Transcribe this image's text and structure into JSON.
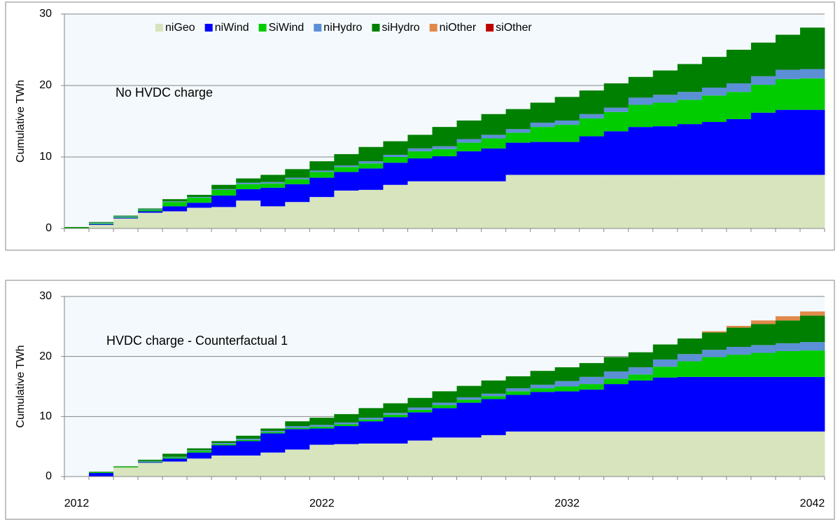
{
  "chart_data": [
    {
      "type": "step-area",
      "annotation": "No HVDC charge",
      "y_label": "Cumulative TWh",
      "categories": [
        null,
        null,
        null,
        null,
        null,
        null,
        null,
        null,
        null,
        null,
        null,
        null,
        null,
        null,
        null,
        null,
        null,
        null,
        null,
        null,
        null,
        null,
        null,
        null,
        null,
        null,
        null,
        null,
        null,
        null,
        null
      ],
      "ylim": [
        0,
        30
      ],
      "yticks": [
        0,
        10,
        20,
        30
      ],
      "grid": true,
      "legend": "top",
      "series": [
        {
          "name": "niGeo",
          "color": "#d7e4bd",
          "values": [
            0,
            0.5,
            1.4,
            2.2,
            2.4,
            2.9,
            3.0,
            3.9,
            3.1,
            3.7,
            4.4,
            5.3,
            5.4,
            6.1,
            6.6,
            6.6,
            6.6,
            6.6,
            7.5,
            7.5,
            7.5,
            7.5,
            7.5,
            7.5,
            7.5,
            7.5,
            7.5,
            7.5,
            7.5,
            7.5,
            7.5
          ]
        },
        {
          "name": "niWind",
          "color": "#0000ff",
          "values": [
            0,
            0.1,
            0.1,
            0.2,
            0.7,
            0.7,
            1.6,
            1.6,
            2.6,
            2.5,
            2.7,
            2.6,
            3.0,
            3.1,
            3.2,
            3.5,
            4.2,
            4.6,
            4.5,
            4.6,
            4.6,
            5.4,
            6.1,
            6.7,
            6.8,
            7.1,
            7.4,
            7.8,
            8.7,
            9.1,
            9.1
          ]
        },
        {
          "name": "SiWind",
          "color": "#00cc00",
          "values": [
            0.1,
            0.1,
            0.1,
            0.2,
            0.6,
            0.7,
            0.8,
            0.7,
            0.6,
            0.7,
            0.8,
            0.7,
            0.7,
            0.8,
            1.0,
            1.0,
            1.2,
            1.4,
            1.4,
            2.1,
            2.4,
            2.5,
            2.7,
            3.1,
            3.3,
            3.4,
            3.7,
            3.8,
            3.9,
            4.3,
            4.4
          ]
        },
        {
          "name": "niHydro",
          "color": "#5b8fd6",
          "values": [
            0,
            0.1,
            0.1,
            0.1,
            0.1,
            0.1,
            0.1,
            0.2,
            0.2,
            0.2,
            0.2,
            0.2,
            0.3,
            0.3,
            0.4,
            0.4,
            0.5,
            0.5,
            0.5,
            0.6,
            0.6,
            0.6,
            0.6,
            1.0,
            1.1,
            1.1,
            1.1,
            1.2,
            1.2,
            1.3,
            1.3
          ]
        },
        {
          "name": "siHydro",
          "color": "#008000",
          "values": [
            0.1,
            0.1,
            0.1,
            0.1,
            0.3,
            0.3,
            0.6,
            0.6,
            1.0,
            1.2,
            1.3,
            1.6,
            2.0,
            1.9,
            1.9,
            2.7,
            2.6,
            2.9,
            2.8,
            2.8,
            3.3,
            3.3,
            3.4,
            2.9,
            3.4,
            3.9,
            4.3,
            4.7,
            4.7,
            4.9,
            5.8
          ]
        },
        {
          "name": "niOther",
          "color": "#e0894a",
          "values": [
            0,
            0,
            0,
            0,
            0,
            0,
            0,
            0,
            0,
            0,
            0,
            0,
            0,
            0,
            0,
            0,
            0,
            0,
            0,
            0,
            0,
            0,
            0,
            0,
            0,
            0,
            0,
            0,
            0,
            0,
            0
          ]
        },
        {
          "name": "siOther",
          "color": "#c00000",
          "values": [
            0,
            0,
            0,
            0,
            0,
            0,
            0,
            0,
            0,
            0,
            0,
            0,
            0,
            0,
            0,
            0,
            0,
            0,
            0,
            0,
            0,
            0,
            0,
            0,
            0,
            0,
            0,
            0,
            0,
            0,
            0
          ]
        }
      ]
    },
    {
      "type": "step-area",
      "annotation": "HVDC charge - Counterfactual 1",
      "y_label": "Cumulative TWh",
      "categories": [
        "2012",
        null,
        null,
        null,
        null,
        null,
        null,
        null,
        null,
        null,
        "2022",
        null,
        null,
        null,
        null,
        null,
        null,
        null,
        null,
        null,
        "2032",
        null,
        null,
        null,
        null,
        null,
        null,
        null,
        null,
        null,
        "2042"
      ],
      "ylim": [
        0,
        30
      ],
      "yticks": [
        0,
        10,
        20,
        30
      ],
      "grid": true,
      "legend": false,
      "series": [
        {
          "name": "niGeo",
          "color": "#d7e4bd",
          "values": [
            0,
            0,
            1.5,
            2.3,
            2.5,
            3.0,
            3.5,
            3.5,
            4.0,
            4.5,
            5.3,
            5.4,
            5.5,
            5.5,
            6.0,
            6.5,
            6.5,
            6.9,
            7.5,
            7.5,
            7.5,
            7.5,
            7.5,
            7.5,
            7.5,
            7.5,
            7.5,
            7.5,
            7.5,
            7.5,
            7.5
          ]
        },
        {
          "name": "niWind",
          "color": "#0000ff",
          "values": [
            0,
            0.6,
            0,
            0.1,
            0.5,
            1.0,
            1.7,
            2.4,
            3.2,
            3.4,
            2.7,
            3.0,
            3.7,
            4.4,
            4.7,
            4.9,
            5.8,
            6.0,
            6.1,
            6.6,
            6.7,
            7.0,
            7.9,
            8.5,
            9.0,
            9.1,
            9.1,
            9.1,
            9.1,
            9.1,
            9.1
          ]
        },
        {
          "name": "SiWind",
          "color": "#00cc00",
          "values": [
            0,
            0.1,
            0.1,
            0.1,
            0.2,
            0.3,
            0.2,
            0.2,
            0.2,
            0.2,
            0.3,
            0.3,
            0.3,
            0.4,
            0.4,
            0.5,
            0.5,
            0.5,
            0.6,
            0.6,
            0.8,
            0.9,
            0.9,
            1.0,
            1.8,
            2.6,
            3.3,
            3.7,
            4.0,
            4.3,
            4.4
          ]
        },
        {
          "name": "niHydro",
          "color": "#5b8fd6",
          "values": [
            0,
            0,
            0,
            0.1,
            0.1,
            0.1,
            0.2,
            0.2,
            0.2,
            0.3,
            0.3,
            0.3,
            0.3,
            0.3,
            0.4,
            0.4,
            0.4,
            0.4,
            0.5,
            0.6,
            0.9,
            1.2,
            1.2,
            1.2,
            1.2,
            1.2,
            1.2,
            1.3,
            1.3,
            1.3,
            1.4
          ]
        },
        {
          "name": "siHydro",
          "color": "#008000",
          "values": [
            0,
            0.1,
            0.1,
            0.2,
            0.5,
            0.3,
            0.3,
            0.5,
            0.4,
            0.8,
            1.2,
            1.4,
            1.6,
            1.6,
            1.6,
            1.9,
            1.9,
            2.2,
            2.0,
            2.3,
            2.3,
            2.3,
            2.4,
            2.5,
            2.5,
            2.6,
            2.9,
            3.2,
            3.5,
            3.8,
            4.4
          ]
        },
        {
          "name": "niOther",
          "color": "#e0894a",
          "values": [
            0,
            0,
            0,
            0,
            0,
            0,
            0,
            0,
            0,
            0,
            0,
            0,
            0,
            0,
            0,
            0,
            0,
            0,
            0,
            0,
            0,
            0,
            0,
            0,
            0,
            0,
            0.2,
            0.3,
            0.6,
            0.7,
            0.7
          ]
        },
        {
          "name": "siOther",
          "color": "#c00000",
          "values": [
            0,
            0,
            0,
            0,
            0,
            0,
            0,
            0,
            0,
            0,
            0,
            0,
            0,
            0,
            0,
            0,
            0,
            0,
            0,
            0,
            0,
            0,
            0,
            0,
            0,
            0,
            0,
            0,
            0,
            0,
            0
          ]
        }
      ]
    }
  ]
}
